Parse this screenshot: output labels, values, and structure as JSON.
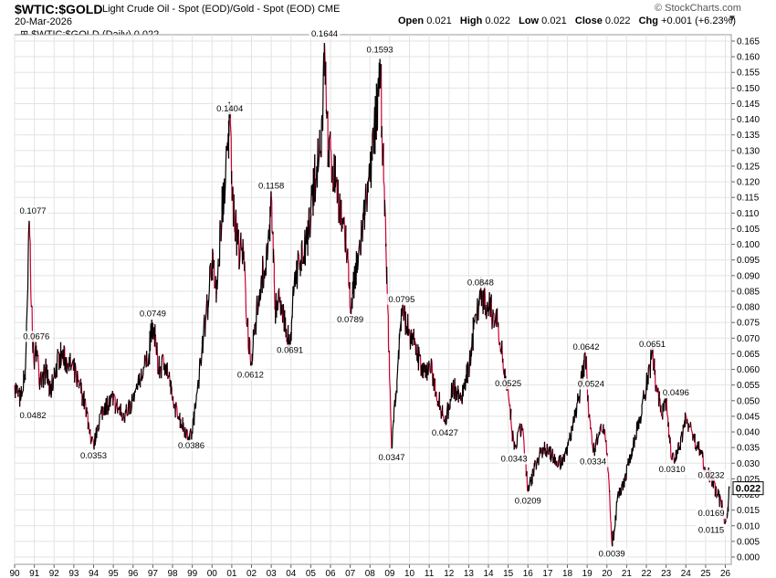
{
  "header": {
    "symbol": "$WTIC:$GOLD",
    "description": "Light Crude Oil - Spot (EOD)/Gold - Spot (EOD)",
    "exchange": "CME",
    "date": "20-Mar-2026",
    "brand": "© StockCharts.com",
    "ohlc": {
      "open_label": "Open",
      "open": "0.021",
      "high_label": "High",
      "high": "0.022",
      "low_label": "Low",
      "low": "0.021",
      "close_label": "Close",
      "close": "0.022",
      "chg_label": "Chg",
      "chg": "+0.001 (+6.23%)"
    },
    "legend": "$WTIC:$GOLD (Daily) 0.022",
    "collapse_icon": "triangle-down-icon"
  },
  "colors": {
    "up": "#000000",
    "down": "#cc0033",
    "grid": "#e3e3e3"
  },
  "chart_data": {
    "type": "line",
    "xlim": [
      1990,
      2026.3
    ],
    "ylim": [
      0,
      0.165
    ],
    "y_ticks": [
      "0.000",
      "0.005",
      "0.010",
      "0.015",
      "0.020",
      "0.025",
      "0.030",
      "0.035",
      "0.040",
      "0.045",
      "0.050",
      "0.055",
      "0.060",
      "0.065",
      "0.070",
      "0.075",
      "0.080",
      "0.085",
      "0.090",
      "0.095",
      "0.100",
      "0.105",
      "0.110",
      "0.115",
      "0.120",
      "0.125",
      "0.130",
      "0.135",
      "0.140",
      "0.145",
      "0.150",
      "0.155",
      "0.160",
      "0.165"
    ],
    "x_ticks": [
      "90",
      "91",
      "92",
      "93",
      "94",
      "95",
      "96",
      "97",
      "98",
      "99",
      "00",
      "01",
      "02",
      "03",
      "04",
      "05",
      "06",
      "07",
      "08",
      "09",
      "10",
      "11",
      "12",
      "13",
      "14",
      "15",
      "16",
      "17",
      "18",
      "19",
      "20",
      "21",
      "22",
      "23",
      "24",
      "25",
      "26"
    ],
    "last_value": "0.022",
    "series": [
      {
        "values": [
          [
            1990.0,
            0.055
          ],
          [
            1990.3,
            0.05
          ],
          [
            1990.55,
            0.06
          ],
          [
            1990.75,
            0.107
          ],
          [
            1990.85,
            0.08
          ],
          [
            1991.0,
            0.06
          ],
          [
            1991.1,
            0.0676
          ],
          [
            1991.3,
            0.055
          ],
          [
            1991.6,
            0.06
          ],
          [
            1991.8,
            0.052
          ],
          [
            1992.0,
            0.058
          ],
          [
            1992.3,
            0.065
          ],
          [
            1992.7,
            0.062
          ],
          [
            1993.0,
            0.06
          ],
          [
            1993.3,
            0.055
          ],
          [
            1993.6,
            0.048
          ],
          [
            1993.9,
            0.037
          ],
          [
            1994.0,
            0.0353
          ],
          [
            1994.2,
            0.042
          ],
          [
            1994.5,
            0.048
          ],
          [
            1995.0,
            0.05
          ],
          [
            1995.5,
            0.045
          ],
          [
            1996.0,
            0.05
          ],
          [
            1996.3,
            0.055
          ],
          [
            1996.8,
            0.065
          ],
          [
            1997.0,
            0.0749
          ],
          [
            1997.3,
            0.06
          ],
          [
            1997.6,
            0.062
          ],
          [
            1997.8,
            0.058
          ],
          [
            1998.0,
            0.05
          ],
          [
            1998.3,
            0.045
          ],
          [
            1998.7,
            0.04
          ],
          [
            1998.95,
            0.0386
          ],
          [
            1999.2,
            0.05
          ],
          [
            1999.5,
            0.068
          ],
          [
            1999.8,
            0.082
          ],
          [
            2000.0,
            0.095
          ],
          [
            2000.2,
            0.085
          ],
          [
            2000.5,
            0.11
          ],
          [
            2000.8,
            0.13
          ],
          [
            2000.9,
            0.1404
          ],
          [
            2001.1,
            0.11
          ],
          [
            2001.3,
            0.1
          ],
          [
            2001.6,
            0.095
          ],
          [
            2001.8,
            0.075
          ],
          [
            2001.95,
            0.0612
          ],
          [
            2002.2,
            0.075
          ],
          [
            2002.5,
            0.09
          ],
          [
            2002.8,
            0.095
          ],
          [
            2003.0,
            0.1158
          ],
          [
            2003.2,
            0.08
          ],
          [
            2003.5,
            0.082
          ],
          [
            2003.8,
            0.07
          ],
          [
            2003.95,
            0.0691
          ],
          [
            2004.2,
            0.09
          ],
          [
            2004.5,
            0.095
          ],
          [
            2004.8,
            0.1
          ],
          [
            2005.0,
            0.11
          ],
          [
            2005.3,
            0.125
          ],
          [
            2005.6,
            0.14
          ],
          [
            2005.7,
            0.1644
          ],
          [
            2005.9,
            0.13
          ],
          [
            2006.3,
            0.12
          ],
          [
            2006.6,
            0.105
          ],
          [
            2006.9,
            0.095
          ],
          [
            2007.0,
            0.0789
          ],
          [
            2007.4,
            0.095
          ],
          [
            2007.7,
            0.11
          ],
          [
            2008.0,
            0.12
          ],
          [
            2008.3,
            0.14
          ],
          [
            2008.5,
            0.1593
          ],
          [
            2008.7,
            0.12
          ],
          [
            2008.9,
            0.08
          ],
          [
            2009.1,
            0.0347
          ],
          [
            2009.4,
            0.06
          ],
          [
            2009.6,
            0.0795
          ],
          [
            2010.0,
            0.072
          ],
          [
            2010.4,
            0.065
          ],
          [
            2010.8,
            0.058
          ],
          [
            2011.0,
            0.062
          ],
          [
            2011.5,
            0.05
          ],
          [
            2011.8,
            0.0427
          ],
          [
            2012.2,
            0.055
          ],
          [
            2012.6,
            0.05
          ],
          [
            2013.0,
            0.06
          ],
          [
            2013.3,
            0.075
          ],
          [
            2013.6,
            0.0848
          ],
          [
            2014.0,
            0.08
          ],
          [
            2014.5,
            0.075
          ],
          [
            2014.8,
            0.06
          ],
          [
            2015.0,
            0.0525
          ],
          [
            2015.3,
            0.0343
          ],
          [
            2015.7,
            0.042
          ],
          [
            2016.0,
            0.0209
          ],
          [
            2016.4,
            0.03
          ],
          [
            2016.8,
            0.035
          ],
          [
            2017.3,
            0.032
          ],
          [
            2017.7,
            0.03
          ],
          [
            2018.0,
            0.035
          ],
          [
            2018.4,
            0.045
          ],
          [
            2018.8,
            0.06
          ],
          [
            2018.95,
            0.0642
          ],
          [
            2019.1,
            0.045
          ],
          [
            2019.3,
            0.0334
          ],
          [
            2019.6,
            0.04
          ],
          [
            2019.9,
            0.04
          ],
          [
            2020.1,
            0.025
          ],
          [
            2020.25,
            0.0039
          ],
          [
            2020.6,
            0.02
          ],
          [
            2020.9,
            0.025
          ],
          [
            2021.3,
            0.035
          ],
          [
            2021.7,
            0.045
          ],
          [
            2022.0,
            0.055
          ],
          [
            2022.3,
            0.0651
          ],
          [
            2022.5,
            0.055
          ],
          [
            2022.8,
            0.045
          ],
          [
            2023.0,
            0.05
          ],
          [
            2023.3,
            0.031
          ],
          [
            2023.7,
            0.035
          ],
          [
            2024.0,
            0.045
          ],
          [
            2024.4,
            0.038
          ],
          [
            2024.8,
            0.033
          ],
          [
            2025.0,
            0.028
          ],
          [
            2025.3,
            0.025
          ],
          [
            2025.6,
            0.02
          ],
          [
            2025.8,
            0.0169
          ],
          [
            2026.0,
            0.0115
          ],
          [
            2026.1,
            0.013
          ],
          [
            2026.2,
            0.022
          ]
        ]
      }
    ],
    "annotations": [
      {
        "text": "0.1077",
        "x": 1990.75,
        "y": 0.1077,
        "pos": "above"
      },
      {
        "text": "0.0676",
        "x": 1991.1,
        "y": 0.0676,
        "pos": "above"
      },
      {
        "text": "0.0482",
        "x": 1990.3,
        "y": 0.0482,
        "pos": "below"
      },
      {
        "text": "0.0353",
        "x": 1994.0,
        "y": 0.0353,
        "pos": "below"
      },
      {
        "text": "0.0749",
        "x": 1997.0,
        "y": 0.0749,
        "pos": "above"
      },
      {
        "text": "0.0386",
        "x": 1998.95,
        "y": 0.0386,
        "pos": "below"
      },
      {
        "text": "0.1404",
        "x": 2000.9,
        "y": 0.1404,
        "pos": "above"
      },
      {
        "text": "0.0612",
        "x": 2001.95,
        "y": 0.0612,
        "pos": "below"
      },
      {
        "text": "0.1158",
        "x": 2003.0,
        "y": 0.1158,
        "pos": "above"
      },
      {
        "text": "0.0691",
        "x": 2003.95,
        "y": 0.0691,
        "pos": "below"
      },
      {
        "text": "0.1644",
        "x": 2005.7,
        "y": 0.1644,
        "pos": "above"
      },
      {
        "text": "0.0789",
        "x": 2007.0,
        "y": 0.0789,
        "pos": "below"
      },
      {
        "text": "0.1593",
        "x": 2008.5,
        "y": 0.1593,
        "pos": "above"
      },
      {
        "text": "0.0795",
        "x": 2009.6,
        "y": 0.0795,
        "pos": "above"
      },
      {
        "text": "0.0347",
        "x": 2009.1,
        "y": 0.0347,
        "pos": "below"
      },
      {
        "text": "0.0427",
        "x": 2011.8,
        "y": 0.0427,
        "pos": "below"
      },
      {
        "text": "0.0848",
        "x": 2013.6,
        "y": 0.0848,
        "pos": "above"
      },
      {
        "text": "0.0525",
        "x": 2015.0,
        "y": 0.0525,
        "pos": "above"
      },
      {
        "text": "0.0343",
        "x": 2015.3,
        "y": 0.0343,
        "pos": "below"
      },
      {
        "text": "0.0209",
        "x": 2016.0,
        "y": 0.0209,
        "pos": "below"
      },
      {
        "text": "0.0642",
        "x": 2018.95,
        "y": 0.0642,
        "pos": "above"
      },
      {
        "text": "0.0524",
        "x": 2019.2,
        "y": 0.0524,
        "pos": "above"
      },
      {
        "text": "0.0334",
        "x": 2019.3,
        "y": 0.0334,
        "pos": "below"
      },
      {
        "text": "0.0039",
        "x": 2020.25,
        "y": 0.0039,
        "pos": "below"
      },
      {
        "text": "0.0651",
        "x": 2022.3,
        "y": 0.0651,
        "pos": "above"
      },
      {
        "text": "0.0496",
        "x": 2023.5,
        "y": 0.0496,
        "pos": "above"
      },
      {
        "text": "0.0310",
        "x": 2023.3,
        "y": 0.031,
        "pos": "below"
      },
      {
        "text": "0.0232",
        "x": 2026.0,
        "y": 0.0232,
        "pos": "above"
      },
      {
        "text": "0.0169",
        "x": 2025.8,
        "y": 0.0169,
        "pos": "below"
      },
      {
        "text": "0.0115",
        "x": 2026.0,
        "y": 0.0115,
        "pos": "below"
      }
    ]
  }
}
